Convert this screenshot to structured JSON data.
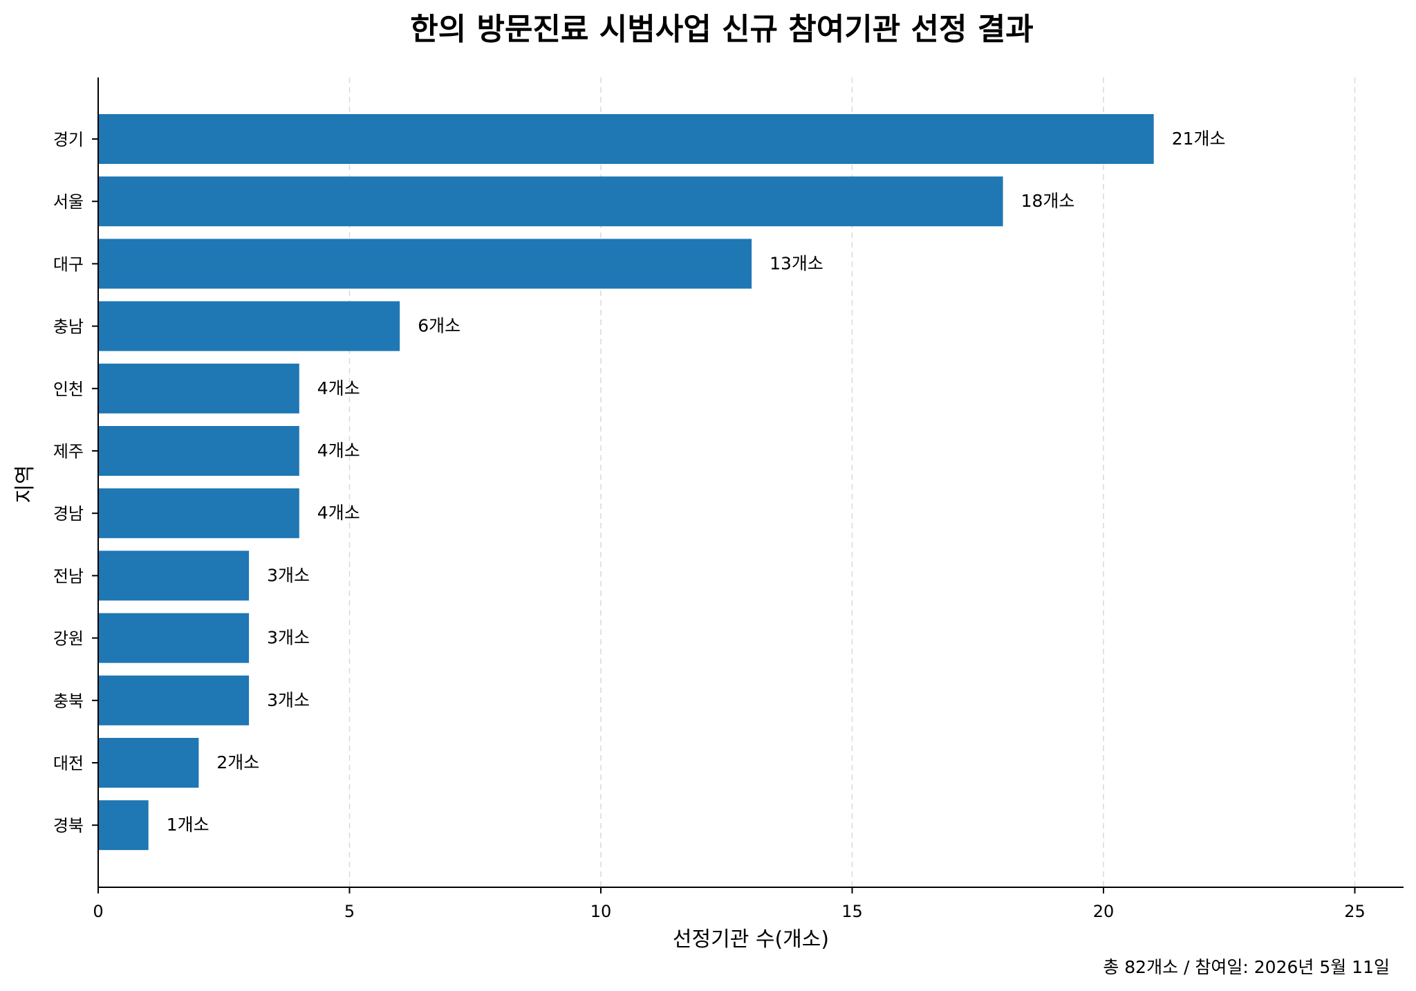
{
  "chart_data": {
    "type": "bar",
    "orientation": "horizontal",
    "title": "한의 방문진료 시범사업 신규 참여기관 선정 결과",
    "xlabel": "선정기관 수(개소)",
    "ylabel": "지역",
    "categories": [
      "경기",
      "서울",
      "대구",
      "충남",
      "인천",
      "제주",
      "경남",
      "전남",
      "강원",
      "충북",
      "대전",
      "경북"
    ],
    "values": [
      21,
      18,
      13,
      6,
      4,
      4,
      4,
      3,
      3,
      3,
      2,
      1
    ],
    "data_labels": [
      "21개소",
      "18개소",
      "13개소",
      "6개소",
      "4개소",
      "4개소",
      "4개소",
      "3개소",
      "3개소",
      "3개소",
      "2개소",
      "1개소"
    ],
    "xlim": [
      0,
      26
    ],
    "xticks": [
      0,
      5,
      10,
      15,
      20,
      25
    ],
    "xtick_labels": [
      "0",
      "5",
      "10",
      "15",
      "20",
      "25"
    ],
    "grid": "x-axis dashed",
    "bar_color": "#1f77b4",
    "footnote": "총 82개소 / 참여일: 2026년 5월 11일"
  }
}
